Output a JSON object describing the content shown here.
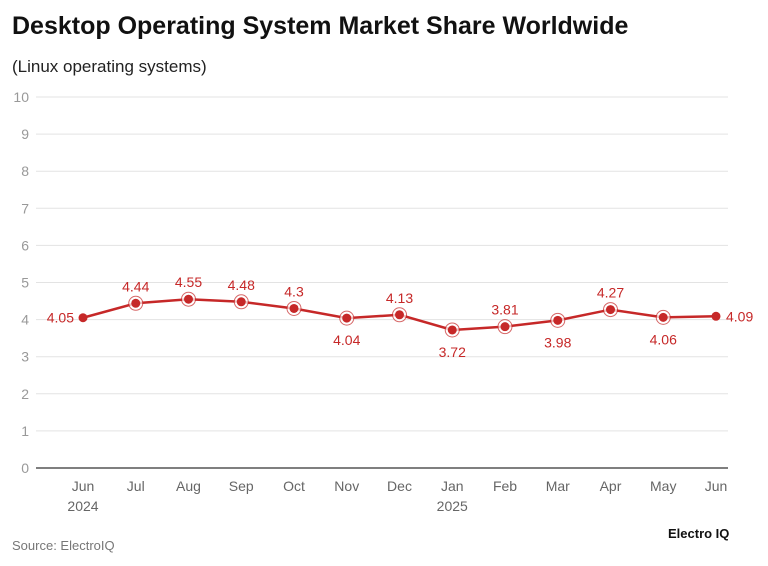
{
  "chart_data": {
    "type": "line",
    "title": "Desktop Operating System Market Share Worldwide",
    "subtitle": "(Linux operating systems)",
    "categories": [
      [
        "Jun",
        "2024"
      ],
      [
        "Jul"
      ],
      [
        "Aug"
      ],
      [
        "Sep"
      ],
      [
        "Oct"
      ],
      [
        "Nov"
      ],
      [
        "Dec"
      ],
      [
        "Jan",
        "2025"
      ],
      [
        "Feb"
      ],
      [
        "Mar"
      ],
      [
        "Apr"
      ],
      [
        "May"
      ],
      [
        "Jun"
      ]
    ],
    "values": [
      4.05,
      4.44,
      4.55,
      4.48,
      4.3,
      4.04,
      4.13,
      3.72,
      3.81,
      3.98,
      4.27,
      4.06,
      4.09
    ],
    "data_labels": [
      "4.05",
      "4.44",
      "4.55",
      "4.48",
      "4.3",
      "4.04",
      "4.13",
      "3.72",
      "3.81",
      "3.98",
      "4.27",
      "4.06",
      "4.09"
    ],
    "label_positions": [
      "left",
      "above",
      "above",
      "above",
      "above",
      "below",
      "above",
      "below",
      "above",
      "below",
      "above",
      "below",
      "right"
    ],
    "ylim": [
      0,
      10
    ],
    "yticks": [
      0,
      1,
      2,
      3,
      4,
      5,
      6,
      7,
      8,
      9,
      10
    ],
    "grid": true,
    "line_color": "#c62828",
    "source": "Source: ElectroIQ",
    "logo": "Electro IQ"
  }
}
